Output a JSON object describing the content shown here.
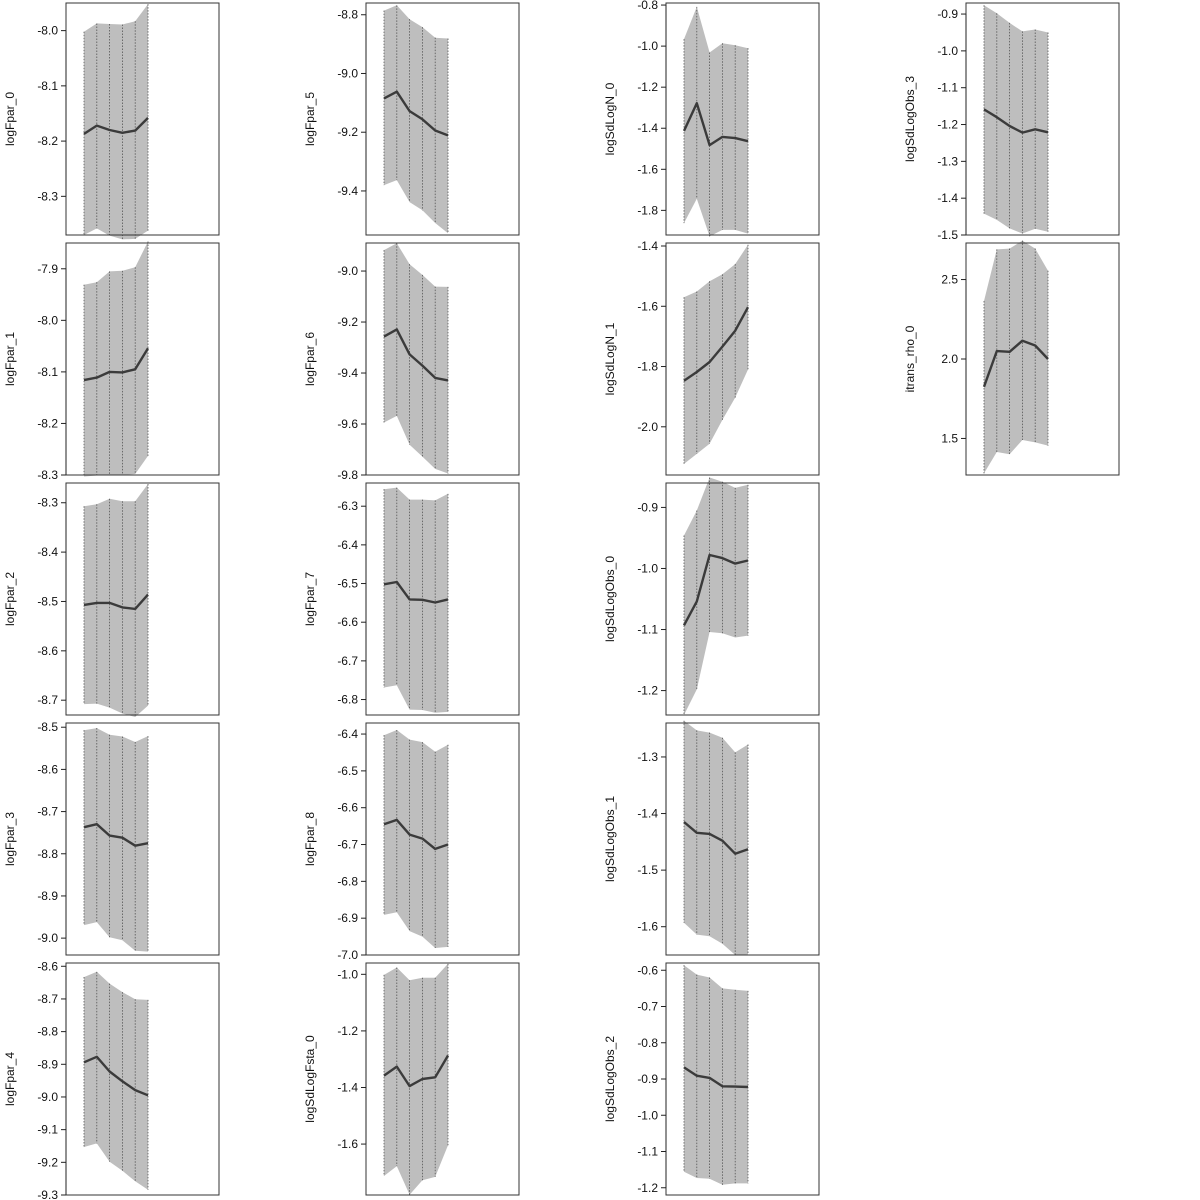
{
  "chart_data": [
    {
      "type": "area",
      "ylabel": "logFpar_0",
      "x": [
        1,
        2,
        3,
        4,
        5,
        6
      ],
      "ylim": [
        -8.37,
        -7.95
      ],
      "ticks": [
        -8.0,
        -8.1,
        -8.2,
        -8.3
      ],
      "mean": [
        -8.187,
        -8.172,
        -8.18,
        -8.185,
        -8.181,
        -8.158
      ],
      "upper": [
        -8.002,
        -7.987,
        -7.988,
        -7.989,
        -7.983,
        -7.952
      ],
      "lower": [
        -8.37,
        -8.358,
        -8.371,
        -8.378,
        -8.377,
        -8.362
      ]
    },
    {
      "type": "area",
      "ylabel": "logFpar_1",
      "x": [
        1,
        2,
        3,
        4,
        5,
        6
      ],
      "ylim": [
        -8.3,
        -7.85
      ],
      "ticks": [
        -7.9,
        -8.0,
        -8.1,
        -8.2,
        -8.3
      ],
      "mean": [
        -8.116,
        -8.111,
        -8.1,
        -8.101,
        -8.095,
        -8.054
      ],
      "upper": [
        -7.931,
        -7.926,
        -7.905,
        -7.904,
        -7.897,
        -7.847
      ],
      "lower": [
        -8.303,
        -8.301,
        -8.299,
        -8.3,
        -8.298,
        -8.263
      ]
    },
    {
      "type": "area",
      "ylabel": "logFpar_2",
      "x": [
        1,
        2,
        3,
        4,
        5,
        6
      ],
      "ylim": [
        -8.73,
        -8.26
      ],
      "ticks": [
        -8.3,
        -8.4,
        -8.5,
        -8.6,
        -8.7
      ],
      "mean": [
        -8.507,
        -8.503,
        -8.503,
        -8.512,
        -8.515,
        -8.486
      ],
      "upper": [
        -8.307,
        -8.303,
        -8.292,
        -8.297,
        -8.297,
        -8.262
      ],
      "lower": [
        -8.708,
        -8.707,
        -8.715,
        -8.727,
        -8.734,
        -8.711
      ]
    },
    {
      "type": "area",
      "ylabel": "logFpar_3",
      "x": [
        1,
        2,
        3,
        4,
        5,
        6
      ],
      "ylim": [
        -9.04,
        -8.49
      ],
      "ticks": [
        -8.5,
        -8.6,
        -8.7,
        -8.8,
        -8.9,
        -9.0
      ],
      "mean": [
        -8.737,
        -8.73,
        -8.757,
        -8.762,
        -8.781,
        -8.775
      ],
      "upper": [
        -8.507,
        -8.502,
        -8.518,
        -8.522,
        -8.535,
        -8.521
      ],
      "lower": [
        -8.969,
        -8.962,
        -8.998,
        -9.005,
        -9.03,
        -9.032
      ]
    },
    {
      "type": "area",
      "ylabel": "logFpar_4",
      "x": [
        1,
        2,
        3,
        4,
        5,
        6
      ],
      "ylim": [
        -9.3,
        -8.59
      ],
      "ticks": [
        -8.6,
        -8.7,
        -8.8,
        -8.9,
        -9.0,
        -9.1,
        -9.2,
        -9.3
      ],
      "mean": [
        -8.894,
        -8.877,
        -8.922,
        -8.952,
        -8.979,
        -8.995
      ],
      "upper": [
        -8.633,
        -8.617,
        -8.653,
        -8.679,
        -8.701,
        -8.703
      ],
      "lower": [
        -9.153,
        -9.142,
        -9.198,
        -9.226,
        -9.258,
        -9.284
      ]
    },
    {
      "type": "area",
      "ylabel": "logFpar_5",
      "x": [
        1,
        2,
        3,
        4,
        5,
        6
      ],
      "ylim": [
        -9.55,
        -8.76
      ],
      "ticks": [
        -8.8,
        -9.0,
        -9.2,
        -9.4
      ],
      "mean": [
        -9.085,
        -9.062,
        -9.128,
        -9.156,
        -9.194,
        -9.211
      ],
      "upper": [
        -8.786,
        -8.768,
        -8.815,
        -8.842,
        -8.878,
        -8.881
      ],
      "lower": [
        -9.38,
        -9.363,
        -9.438,
        -9.466,
        -9.509,
        -9.544
      ]
    },
    {
      "type": "area",
      "ylabel": "logFpar_6",
      "x": [
        1,
        2,
        3,
        4,
        5,
        6
      ],
      "ylim": [
        -9.8,
        -8.89
      ],
      "ticks": [
        -9.0,
        -9.2,
        -9.4,
        -9.6,
        -9.8
      ],
      "mean": [
        -9.257,
        -9.229,
        -9.327,
        -9.371,
        -9.419,
        -9.429
      ],
      "upper": [
        -8.918,
        -8.891,
        -8.973,
        -9.015,
        -9.061,
        -9.062
      ],
      "lower": [
        -9.594,
        -9.568,
        -9.681,
        -9.728,
        -9.776,
        -9.794
      ]
    },
    {
      "type": "area",
      "ylabel": "logFpar_7",
      "x": [
        1,
        2,
        3,
        4,
        5,
        6
      ],
      "ylim": [
        -6.84,
        -6.24
      ],
      "ticks": [
        -6.3,
        -6.4,
        -6.5,
        -6.6,
        -6.7,
        -6.8
      ],
      "mean": [
        -6.502,
        -6.496,
        -6.541,
        -6.542,
        -6.549,
        -6.541
      ],
      "upper": [
        -6.256,
        -6.252,
        -6.283,
        -6.283,
        -6.285,
        -6.268
      ],
      "lower": [
        -6.769,
        -6.763,
        -6.826,
        -6.827,
        -6.834,
        -6.832
      ]
    },
    {
      "type": "area",
      "ylabel": "logFpar_8",
      "x": [
        1,
        2,
        3,
        4,
        5,
        6
      ],
      "ylim": [
        -7.0,
        -6.37
      ],
      "ticks": [
        -6.4,
        -6.5,
        -6.6,
        -6.7,
        -6.8,
        -6.9,
        -7.0
      ],
      "mean": [
        -6.645,
        -6.633,
        -6.673,
        -6.684,
        -6.712,
        -6.7
      ],
      "upper": [
        -6.403,
        -6.389,
        -6.415,
        -6.422,
        -6.448,
        -6.429
      ],
      "lower": [
        -6.891,
        -6.884,
        -6.935,
        -6.95,
        -6.981,
        -6.978
      ]
    },
    {
      "type": "area",
      "ylabel": "logSdLogFsta_0",
      "x": [
        1,
        2,
        3,
        4,
        5,
        6
      ],
      "ylim": [
        -1.78,
        -0.96
      ],
      "ticks": [
        -1.0,
        -1.2,
        -1.4,
        -1.6
      ],
      "mean": [
        -1.358,
        -1.326,
        -1.395,
        -1.37,
        -1.364,
        -1.287
      ],
      "upper": [
        -1.002,
        -0.976,
        -1.021,
        -1.012,
        -1.012,
        -0.963
      ],
      "lower": [
        -1.713,
        -1.678,
        -1.779,
        -1.728,
        -1.716,
        -1.604
      ]
    },
    {
      "type": "area",
      "ylabel": "logSdLogN_0",
      "x": [
        1,
        2,
        3,
        4,
        5,
        6
      ],
      "ylim": [
        -1.92,
        -0.79
      ],
      "ticks": [
        -0.8,
        -1.0,
        -1.2,
        -1.4,
        -1.6,
        -1.8
      ],
      "mean": [
        -1.413,
        -1.278,
        -1.482,
        -1.442,
        -1.448,
        -1.463
      ],
      "upper": [
        -0.966,
        -0.809,
        -1.031,
        -0.986,
        -0.996,
        -1.01
      ],
      "lower": [
        -1.862,
        -1.743,
        -1.927,
        -1.895,
        -1.895,
        -1.913
      ]
    },
    {
      "type": "area",
      "ylabel": "logSdLogN_1",
      "x": [
        1,
        2,
        3,
        4,
        5,
        6
      ],
      "ylim": [
        -2.16,
        -1.39
      ],
      "ticks": [
        -1.4,
        -1.6,
        -1.8,
        -2.0
      ],
      "mean": [
        -1.847,
        -1.818,
        -1.785,
        -1.734,
        -1.681,
        -1.603
      ],
      "upper": [
        -1.57,
        -1.551,
        -1.517,
        -1.494,
        -1.46,
        -1.396
      ],
      "lower": [
        -2.123,
        -2.09,
        -2.056,
        -1.977,
        -1.903,
        -1.81
      ]
    },
    {
      "type": "area",
      "ylabel": "logSdLogObs_0",
      "x": [
        1,
        2,
        3,
        4,
        5,
        6
      ],
      "ylim": [
        -1.24,
        -0.86
      ],
      "ticks": [
        -0.9,
        -1.0,
        -1.1,
        -1.2
      ],
      "mean": [
        -1.093,
        -1.054,
        -0.978,
        -0.983,
        -0.992,
        -0.987
      ],
      "upper": [
        -0.946,
        -0.905,
        -0.851,
        -0.858,
        -0.868,
        -0.863
      ],
      "lower": [
        -1.24,
        -1.198,
        -1.104,
        -1.106,
        -1.113,
        -1.11
      ]
    },
    {
      "type": "area",
      "ylabel": "logSdLogObs_1",
      "x": [
        1,
        2,
        3,
        4,
        5,
        6
      ],
      "ylim": [
        -1.65,
        -1.24
      ],
      "ticks": [
        -1.3,
        -1.4,
        -1.5,
        -1.6
      ],
      "mean": [
        -1.415,
        -1.434,
        -1.436,
        -1.448,
        -1.471,
        -1.463
      ],
      "upper": [
        -1.236,
        -1.253,
        -1.257,
        -1.266,
        -1.292,
        -1.278
      ],
      "lower": [
        -1.593,
        -1.614,
        -1.617,
        -1.63,
        -1.65,
        -1.649
      ]
    },
    {
      "type": "area",
      "ylabel": "logSdLogObs_2",
      "x": [
        1,
        2,
        3,
        4,
        5,
        6
      ],
      "ylim": [
        -1.22,
        -0.58
      ],
      "ticks": [
        -0.6,
        -0.7,
        -0.8,
        -0.9,
        -1.0,
        -1.1,
        -1.2
      ],
      "mean": [
        -0.868,
        -0.891,
        -0.897,
        -0.92,
        -0.921,
        -0.922
      ],
      "upper": [
        -0.586,
        -0.612,
        -0.62,
        -0.65,
        -0.654,
        -0.657
      ],
      "lower": [
        -1.156,
        -1.173,
        -1.175,
        -1.192,
        -1.188,
        -1.188
      ]
    },
    {
      "type": "area",
      "ylabel": "logSdLogObs_3",
      "x": [
        1,
        2,
        3,
        4,
        5,
        6
      ],
      "ylim": [
        -1.5,
        -0.87
      ],
      "ticks": [
        -0.9,
        -1.0,
        -1.1,
        -1.2,
        -1.3,
        -1.4,
        -1.5
      ],
      "mean": [
        -1.159,
        -1.18,
        -1.204,
        -1.222,
        -1.213,
        -1.221
      ],
      "upper": [
        -0.876,
        -0.898,
        -0.924,
        -0.947,
        -0.942,
        -0.95
      ],
      "lower": [
        -1.442,
        -1.459,
        -1.482,
        -1.496,
        -1.483,
        -1.491
      ]
    },
    {
      "type": "area",
      "ylabel": "itrans_rho_0",
      "x": [
        1,
        2,
        3,
        4,
        5,
        6
      ],
      "ylim": [
        1.27,
        2.73
      ],
      "ticks": [
        1.5,
        2.0,
        2.5
      ],
      "mean": [
        1.825,
        2.05,
        2.045,
        2.115,
        2.085,
        2.0
      ],
      "upper": [
        2.365,
        2.69,
        2.695,
        2.745,
        2.695,
        2.555
      ],
      "lower": [
        1.28,
        1.415,
        1.4,
        1.49,
        1.475,
        1.455
      ]
    }
  ],
  "colors": {
    "band": "#bebebe",
    "mean_line": "#3b3b3b",
    "frame": "#333333",
    "dotted": "#555555"
  }
}
